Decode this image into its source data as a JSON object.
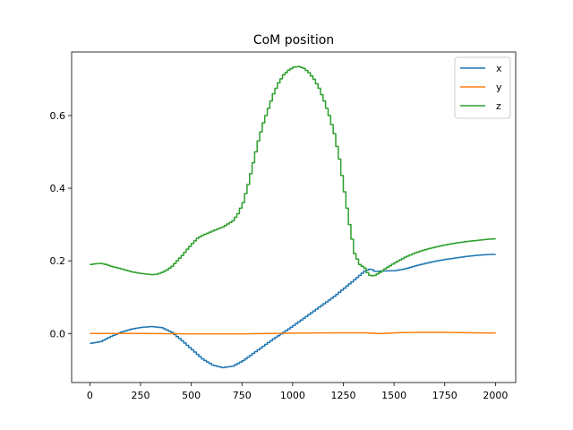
{
  "chart_data": {
    "type": "line",
    "title": "CoM position",
    "xlabel": "",
    "ylabel": "",
    "xlim": [
      -90,
      2100
    ],
    "ylim": [
      -0.135,
      0.775
    ],
    "xticks": [
      0,
      250,
      500,
      750,
      1000,
      1250,
      1500,
      1750,
      2000
    ],
    "yticks": [
      0.0,
      0.2,
      0.4,
      0.6
    ],
    "xtick_labels": [
      "0",
      "250",
      "500",
      "750",
      "1000",
      "1250",
      "1500",
      "1750",
      "2000"
    ],
    "ytick_labels": [
      "0.0",
      "0.2",
      "0.4",
      "0.6"
    ],
    "grid": false,
    "legend": "top-right",
    "series": [
      {
        "name": "x",
        "color": "#1f77b4",
        "x": [
          0,
          50,
          100,
          150,
          200,
          250,
          300,
          350,
          400,
          450,
          500,
          550,
          600,
          650,
          700,
          750,
          800,
          850,
          900,
          950,
          1000,
          1050,
          1100,
          1150,
          1200,
          1250,
          1300,
          1350,
          1380,
          1400,
          1450,
          1500,
          1550,
          1600,
          1650,
          1700,
          1750,
          1800,
          1850,
          1900,
          1950,
          2000
        ],
        "values": [
          -0.027,
          -0.022,
          -0.008,
          0.004,
          0.012,
          0.017,
          0.019,
          0.016,
          0.003,
          -0.02,
          -0.045,
          -0.07,
          -0.087,
          -0.094,
          -0.09,
          -0.075,
          -0.055,
          -0.035,
          -0.015,
          0.003,
          0.022,
          0.042,
          0.062,
          0.082,
          0.102,
          0.125,
          0.148,
          0.172,
          0.178,
          0.171,
          0.172,
          0.173,
          0.178,
          0.186,
          0.193,
          0.199,
          0.204,
          0.208,
          0.212,
          0.215,
          0.217,
          0.218
        ]
      },
      {
        "name": "y",
        "color": "#ff7f0e",
        "x": [
          0,
          250,
          500,
          750,
          1000,
          1250,
          1350,
          1400,
          1450,
          1500,
          1600,
          1750,
          2000
        ],
        "values": [
          0.0,
          0.0,
          -0.001,
          -0.001,
          0.001,
          0.002,
          0.002,
          0.0,
          0.0,
          0.002,
          0.003,
          0.003,
          0.001
        ]
      },
      {
        "name": "z",
        "color": "#2ca02c",
        "x": [
          0,
          25,
          50,
          75,
          100,
          150,
          200,
          250,
          300,
          325,
          350,
          375,
          400,
          425,
          450,
          475,
          500,
          525,
          550,
          575,
          600,
          650,
          700,
          725,
          750,
          775,
          800,
          825,
          850,
          875,
          900,
          925,
          950,
          975,
          1000,
          1025,
          1050,
          1075,
          1100,
          1125,
          1150,
          1175,
          1200,
          1225,
          1250,
          1275,
          1300,
          1325,
          1350,
          1365,
          1380,
          1400,
          1425,
          1450,
          1500,
          1550,
          1600,
          1650,
          1700,
          1750,
          1800,
          1850,
          1900,
          1950,
          2000
        ],
        "values": [
          0.19,
          0.192,
          0.193,
          0.19,
          0.185,
          0.178,
          0.17,
          0.165,
          0.162,
          0.163,
          0.168,
          0.175,
          0.185,
          0.2,
          0.215,
          0.232,
          0.248,
          0.262,
          0.27,
          0.276,
          0.282,
          0.293,
          0.31,
          0.33,
          0.36,
          0.41,
          0.47,
          0.53,
          0.58,
          0.62,
          0.66,
          0.69,
          0.712,
          0.725,
          0.733,
          0.735,
          0.73,
          0.718,
          0.7,
          0.675,
          0.64,
          0.6,
          0.55,
          0.48,
          0.39,
          0.3,
          0.22,
          0.19,
          0.18,
          0.165,
          0.158,
          0.16,
          0.168,
          0.178,
          0.195,
          0.21,
          0.222,
          0.231,
          0.238,
          0.244,
          0.249,
          0.253,
          0.256,
          0.259,
          0.261
        ]
      }
    ]
  }
}
